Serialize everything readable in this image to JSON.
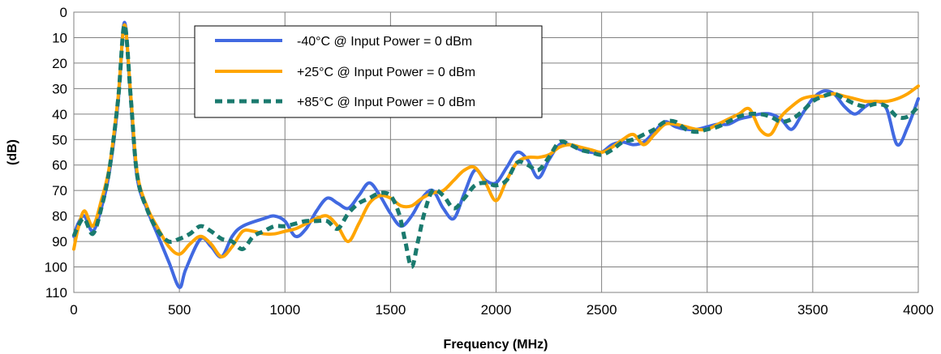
{
  "chart_data": {
    "type": "line",
    "title": "",
    "xlabel": "Frequency (MHz)",
    "ylabel": "(dB)",
    "xlim": [
      0,
      4000
    ],
    "ylim": [
      0,
      110
    ],
    "y_inverted": true,
    "x_ticks": [
      "0",
      "500",
      "1000",
      "1500",
      "2000",
      "2500",
      "3000",
      "3500",
      "4000"
    ],
    "y_ticks": [
      "0",
      "10",
      "20",
      "30",
      "40",
      "50",
      "60",
      "70",
      "80",
      "90",
      "100",
      "110"
    ],
    "grid": true,
    "legend_position": "top-left",
    "series": [
      {
        "name": "-40°C @  Input Power = 0 dBm",
        "color": "#4169E1",
        "style": "solid",
        "points": [
          [
            0,
            88
          ],
          [
            20,
            83
          ],
          [
            50,
            80
          ],
          [
            90,
            86
          ],
          [
            130,
            77
          ],
          [
            170,
            62
          ],
          [
            210,
            35
          ],
          [
            240,
            4
          ],
          [
            270,
            35
          ],
          [
            300,
            65
          ],
          [
            350,
            78
          ],
          [
            400,
            88
          ],
          [
            450,
            98
          ],
          [
            500,
            108
          ],
          [
            530,
            101
          ],
          [
            600,
            89
          ],
          [
            650,
            92
          ],
          [
            700,
            96
          ],
          [
            750,
            88
          ],
          [
            800,
            84
          ],
          [
            900,
            81
          ],
          [
            950,
            80
          ],
          [
            1000,
            82
          ],
          [
            1050,
            88
          ],
          [
            1100,
            85
          ],
          [
            1150,
            78
          ],
          [
            1200,
            73
          ],
          [
            1250,
            75
          ],
          [
            1300,
            77
          ],
          [
            1350,
            72
          ],
          [
            1400,
            67
          ],
          [
            1450,
            72
          ],
          [
            1500,
            79
          ],
          [
            1550,
            84
          ],
          [
            1600,
            80
          ],
          [
            1650,
            73
          ],
          [
            1700,
            70
          ],
          [
            1750,
            77
          ],
          [
            1800,
            81
          ],
          [
            1850,
            71
          ],
          [
            1900,
            62
          ],
          [
            1950,
            66
          ],
          [
            2000,
            67
          ],
          [
            2050,
            61
          ],
          [
            2100,
            55
          ],
          [
            2150,
            58
          ],
          [
            2200,
            65
          ],
          [
            2250,
            58
          ],
          [
            2300,
            52
          ],
          [
            2350,
            52
          ],
          [
            2400,
            54
          ],
          [
            2450,
            55
          ],
          [
            2500,
            55
          ],
          [
            2550,
            52
          ],
          [
            2600,
            51
          ],
          [
            2650,
            52
          ],
          [
            2700,
            51
          ],
          [
            2750,
            47
          ],
          [
            2800,
            43
          ],
          [
            2850,
            45
          ],
          [
            2900,
            46
          ],
          [
            2950,
            46
          ],
          [
            3000,
            45
          ],
          [
            3050,
            44
          ],
          [
            3100,
            44
          ],
          [
            3150,
            42
          ],
          [
            3200,
            41
          ],
          [
            3250,
            40
          ],
          [
            3300,
            40
          ],
          [
            3350,
            42
          ],
          [
            3400,
            46
          ],
          [
            3450,
            40
          ],
          [
            3500,
            34
          ],
          [
            3550,
            31
          ],
          [
            3600,
            32
          ],
          [
            3650,
            37
          ],
          [
            3700,
            40
          ],
          [
            3750,
            37
          ],
          [
            3800,
            35
          ],
          [
            3850,
            38
          ],
          [
            3900,
            52
          ],
          [
            3950,
            45
          ],
          [
            4000,
            34
          ]
        ]
      },
      {
        "name": "+25°C @  Input Power = 0 dBm",
        "color": "#FFA500",
        "style": "solid",
        "points": [
          [
            0,
            93
          ],
          [
            20,
            85
          ],
          [
            50,
            78
          ],
          [
            90,
            84
          ],
          [
            130,
            74
          ],
          [
            170,
            60
          ],
          [
            210,
            33
          ],
          [
            240,
            5
          ],
          [
            270,
            33
          ],
          [
            300,
            63
          ],
          [
            350,
            77
          ],
          [
            400,
            85
          ],
          [
            450,
            92
          ],
          [
            500,
            95
          ],
          [
            550,
            91
          ],
          [
            600,
            88
          ],
          [
            650,
            91
          ],
          [
            700,
            96
          ],
          [
            750,
            92
          ],
          [
            800,
            86
          ],
          [
            850,
            86
          ],
          [
            900,
            87
          ],
          [
            950,
            87
          ],
          [
            1000,
            86
          ],
          [
            1050,
            85
          ],
          [
            1100,
            83
          ],
          [
            1150,
            81
          ],
          [
            1200,
            80
          ],
          [
            1250,
            84
          ],
          [
            1300,
            90
          ],
          [
            1350,
            83
          ],
          [
            1400,
            75
          ],
          [
            1450,
            72
          ],
          [
            1500,
            73
          ],
          [
            1550,
            76
          ],
          [
            1600,
            76
          ],
          [
            1650,
            73
          ],
          [
            1700,
            71
          ],
          [
            1750,
            70
          ],
          [
            1800,
            66
          ],
          [
            1850,
            62
          ],
          [
            1900,
            61
          ],
          [
            1950,
            67
          ],
          [
            2000,
            74
          ],
          [
            2050,
            66
          ],
          [
            2100,
            59
          ],
          [
            2150,
            57
          ],
          [
            2200,
            57
          ],
          [
            2250,
            56
          ],
          [
            2300,
            53
          ],
          [
            2350,
            52
          ],
          [
            2400,
            53
          ],
          [
            2450,
            54
          ],
          [
            2500,
            55
          ],
          [
            2550,
            53
          ],
          [
            2600,
            50
          ],
          [
            2650,
            48
          ],
          [
            2700,
            52
          ],
          [
            2750,
            48
          ],
          [
            2800,
            44
          ],
          [
            2850,
            44
          ],
          [
            2900,
            45
          ],
          [
            2950,
            46
          ],
          [
            3000,
            46
          ],
          [
            3050,
            44
          ],
          [
            3100,
            42
          ],
          [
            3150,
            40
          ],
          [
            3200,
            38
          ],
          [
            3250,
            46
          ],
          [
            3300,
            48
          ],
          [
            3350,
            41
          ],
          [
            3400,
            37
          ],
          [
            3450,
            34
          ],
          [
            3500,
            33
          ],
          [
            3550,
            33
          ],
          [
            3600,
            32
          ],
          [
            3650,
            33
          ],
          [
            3700,
            34
          ],
          [
            3750,
            35
          ],
          [
            3800,
            35
          ],
          [
            3850,
            35
          ],
          [
            3900,
            34
          ],
          [
            3950,
            32
          ],
          [
            4000,
            29
          ]
        ]
      },
      {
        "name": "+85°C @  Input Power = 0 dBm",
        "color": "#1A7A6E",
        "style": "dashed",
        "points": [
          [
            0,
            88
          ],
          [
            20,
            84
          ],
          [
            50,
            81
          ],
          [
            90,
            87
          ],
          [
            130,
            77
          ],
          [
            170,
            61
          ],
          [
            210,
            34
          ],
          [
            240,
            5
          ],
          [
            270,
            34
          ],
          [
            300,
            64
          ],
          [
            350,
            78
          ],
          [
            400,
            86
          ],
          [
            450,
            90
          ],
          [
            500,
            89
          ],
          [
            550,
            87
          ],
          [
            600,
            84
          ],
          [
            650,
            86
          ],
          [
            700,
            89
          ],
          [
            750,
            90
          ],
          [
            800,
            93
          ],
          [
            850,
            88
          ],
          [
            900,
            86
          ],
          [
            950,
            84
          ],
          [
            1000,
            84
          ],
          [
            1050,
            83
          ],
          [
            1100,
            82
          ],
          [
            1150,
            82
          ],
          [
            1200,
            82
          ],
          [
            1250,
            85
          ],
          [
            1300,
            79
          ],
          [
            1350,
            75
          ],
          [
            1400,
            73
          ],
          [
            1450,
            71
          ],
          [
            1500,
            72
          ],
          [
            1540,
            79
          ],
          [
            1570,
            90
          ],
          [
            1600,
            100
          ],
          [
            1630,
            90
          ],
          [
            1660,
            79
          ],
          [
            1700,
            70
          ],
          [
            1750,
            72
          ],
          [
            1800,
            77
          ],
          [
            1850,
            73
          ],
          [
            1900,
            68
          ],
          [
            1950,
            67
          ],
          [
            2000,
            68
          ],
          [
            2050,
            66
          ],
          [
            2100,
            59
          ],
          [
            2150,
            60
          ],
          [
            2200,
            62
          ],
          [
            2250,
            57
          ],
          [
            2300,
            51
          ],
          [
            2350,
            52
          ],
          [
            2400,
            54
          ],
          [
            2450,
            55
          ],
          [
            2500,
            56
          ],
          [
            2550,
            54
          ],
          [
            2600,
            51
          ],
          [
            2650,
            50
          ],
          [
            2700,
            48
          ],
          [
            2750,
            46
          ],
          [
            2800,
            43
          ],
          [
            2850,
            43
          ],
          [
            2900,
            46
          ],
          [
            2950,
            47
          ],
          [
            3000,
            46
          ],
          [
            3050,
            45
          ],
          [
            3100,
            43
          ],
          [
            3150,
            41
          ],
          [
            3200,
            40
          ],
          [
            3250,
            40
          ],
          [
            3300,
            41
          ],
          [
            3350,
            43
          ],
          [
            3400,
            42
          ],
          [
            3450,
            39
          ],
          [
            3500,
            35
          ],
          [
            3550,
            33
          ],
          [
            3600,
            32
          ],
          [
            3650,
            34
          ],
          [
            3700,
            36
          ],
          [
            3750,
            37
          ],
          [
            3800,
            36
          ],
          [
            3850,
            37
          ],
          [
            3900,
            41
          ],
          [
            3950,
            41
          ],
          [
            4000,
            37
          ]
        ]
      }
    ]
  }
}
